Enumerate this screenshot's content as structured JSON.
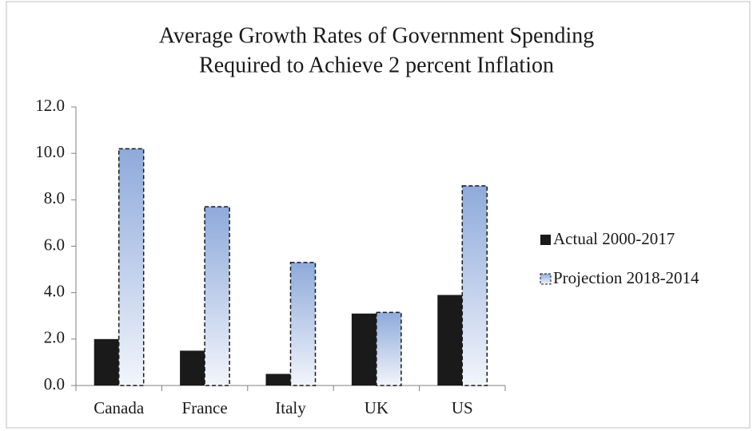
{
  "chart_data": {
    "type": "bar",
    "title": [
      "Average Growth Rates of Government Spending",
      "Required to Achieve 2 percent Inflation"
    ],
    "categories": [
      "Canada",
      "France",
      "Italy",
      "UK",
      "US"
    ],
    "series": [
      {
        "name": "Actual 2000-2017",
        "color": "#1a1a1a",
        "values": [
          2.0,
          1.5,
          0.5,
          3.1,
          3.9
        ]
      },
      {
        "name": "Projection 2018-2014",
        "color": "#8eaadb",
        "values": [
          10.2,
          7.7,
          5.3,
          3.15,
          8.6
        ]
      }
    ],
    "ylim": [
      0,
      12
    ],
    "yticks": [
      {
        "value": 0,
        "label": "0.0"
      },
      {
        "value": 2,
        "label": "2.0"
      },
      {
        "value": 4,
        "label": "4.0"
      },
      {
        "value": 6,
        "label": "6.0"
      },
      {
        "value": 8,
        "label": "8.0"
      },
      {
        "value": 10,
        "label": "10.0"
      },
      {
        "value": 12,
        "label": "12.0"
      }
    ],
    "grid": false,
    "legend": "right"
  }
}
